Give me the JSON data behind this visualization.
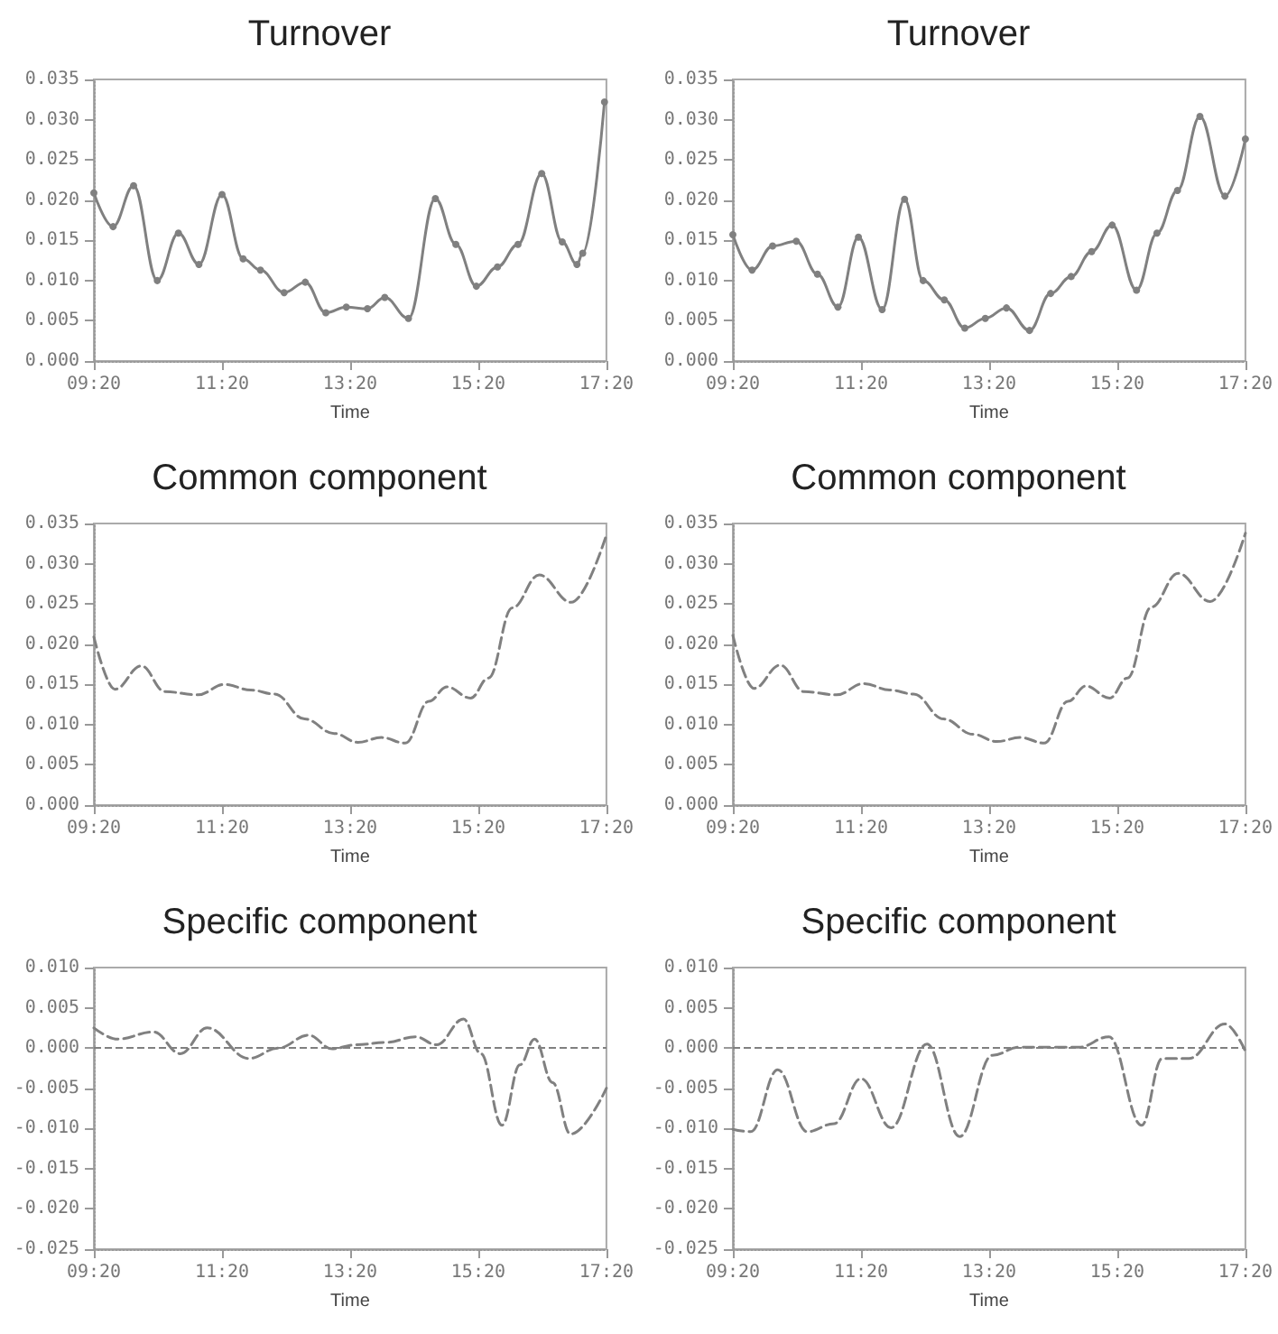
{
  "chart_data": [
    {
      "type": "line",
      "title": "Turnover",
      "xlabel": "Time",
      "marker": "circle",
      "line_style": "solid",
      "xlim": [
        9.33,
        17.33
      ],
      "xticks": [
        {
          "value": 9.33,
          "label": "09:20"
        },
        {
          "value": 11.33,
          "label": "11:20"
        },
        {
          "value": 13.33,
          "label": "13:20"
        },
        {
          "value": 15.33,
          "label": "15:20"
        },
        {
          "value": 17.33,
          "label": "17:20"
        }
      ],
      "ylim": [
        0,
        0.035
      ],
      "yticks": [
        {
          "value": 0,
          "label": "0.000"
        },
        {
          "value": 0.005,
          "label": "0.005"
        },
        {
          "value": 0.01,
          "label": "0.010"
        },
        {
          "value": 0.015,
          "label": "0.015"
        },
        {
          "value": 0.02,
          "label": "0.020"
        },
        {
          "value": 0.025,
          "label": "0.025"
        },
        {
          "value": 0.03,
          "label": "0.030"
        },
        {
          "value": 0.035,
          "label": "0.035"
        }
      ],
      "series": [
        {
          "color": "#808080",
          "x": [
            9.33,
            9.63,
            9.95,
            10.32,
            10.65,
            10.97,
            11.33,
            11.66,
            11.93,
            12.3,
            12.63,
            12.95,
            13.27,
            13.6,
            13.87,
            14.24,
            14.66,
            14.98,
            15.3,
            15.63,
            15.95,
            16.32,
            16.64,
            16.87,
            16.96,
            17.3
          ],
          "values": [
            0.0209,
            0.0167,
            0.0218,
            0.01,
            0.0159,
            0.012,
            0.0207,
            0.0127,
            0.0113,
            0.0085,
            0.0098,
            0.006,
            0.0067,
            0.0065,
            0.0079,
            0.0053,
            0.0202,
            0.0145,
            0.0093,
            0.0117,
            0.0145,
            0.0233,
            0.0148,
            0.012,
            0.0134,
            0.0322
          ]
        }
      ]
    },
    {
      "type": "line",
      "title": "Turnover",
      "xlabel": "Time",
      "marker": "circle",
      "line_style": "solid",
      "xlim": [
        9.33,
        17.33
      ],
      "xticks": [
        {
          "value": 9.33,
          "label": "09:20"
        },
        {
          "value": 11.33,
          "label": "11:20"
        },
        {
          "value": 13.33,
          "label": "13:20"
        },
        {
          "value": 15.33,
          "label": "15:20"
        },
        {
          "value": 17.33,
          "label": "17:20"
        }
      ],
      "ylim": [
        0,
        0.035
      ],
      "yticks": [
        {
          "value": 0,
          "label": "0.000"
        },
        {
          "value": 0.005,
          "label": "0.005"
        },
        {
          "value": 0.01,
          "label": "0.010"
        },
        {
          "value": 0.015,
          "label": "0.015"
        },
        {
          "value": 0.02,
          "label": "0.020"
        },
        {
          "value": 0.025,
          "label": "0.025"
        },
        {
          "value": 0.03,
          "label": "0.030"
        },
        {
          "value": 0.035,
          "label": "0.035"
        }
      ],
      "series": [
        {
          "color": "#808080",
          "x": [
            9.33,
            9.63,
            9.95,
            10.32,
            10.65,
            10.97,
            11.29,
            11.66,
            12.01,
            12.3,
            12.63,
            12.95,
            13.27,
            13.6,
            13.96,
            14.29,
            14.61,
            14.93,
            15.25,
            15.63,
            15.95,
            16.27,
            16.62,
            17.01,
            17.33
          ],
          "values": [
            0.0157,
            0.0113,
            0.0143,
            0.0149,
            0.0108,
            0.0067,
            0.0154,
            0.0064,
            0.0201,
            0.01,
            0.0076,
            0.0041,
            0.0053,
            0.0066,
            0.0038,
            0.0084,
            0.0105,
            0.0136,
            0.0169,
            0.0088,
            0.0159,
            0.0212,
            0.0304,
            0.0205,
            0.0276
          ]
        }
      ]
    },
    {
      "type": "line",
      "title": "Common component",
      "xlabel": "Time",
      "line_style": "dashed",
      "xlim": [
        9.33,
        17.33
      ],
      "xticks": [
        {
          "value": 9.33,
          "label": "09:20"
        },
        {
          "value": 11.33,
          "label": "11:20"
        },
        {
          "value": 13.33,
          "label": "13:20"
        },
        {
          "value": 15.33,
          "label": "15:20"
        },
        {
          "value": 17.33,
          "label": "17:20"
        }
      ],
      "ylim": [
        0,
        0.035
      ],
      "yticks": [
        {
          "value": 0,
          "label": "0.000"
        },
        {
          "value": 0.005,
          "label": "0.005"
        },
        {
          "value": 0.01,
          "label": "0.010"
        },
        {
          "value": 0.015,
          "label": "0.015"
        },
        {
          "value": 0.02,
          "label": "0.020"
        },
        {
          "value": 0.025,
          "label": "0.025"
        },
        {
          "value": 0.03,
          "label": "0.030"
        },
        {
          "value": 0.035,
          "label": "0.035"
        }
      ],
      "series": [
        {
          "color": "#808080",
          "x": [
            9.33,
            9.66,
            10.07,
            10.44,
            10.95,
            11.37,
            11.78,
            12.15,
            12.62,
            13.08,
            13.45,
            13.82,
            14.19,
            14.56,
            14.84,
            15.21,
            15.49,
            15.86,
            16.28,
            16.78,
            17.33
          ],
          "values": [
            0.0209,
            0.0144,
            0.0173,
            0.0141,
            0.0137,
            0.015,
            0.0143,
            0.0138,
            0.0107,
            0.0089,
            0.0078,
            0.0084,
            0.0077,
            0.0129,
            0.0147,
            0.0133,
            0.0158,
            0.0245,
            0.0286,
            0.0252,
            0.0336
          ]
        }
      ]
    },
    {
      "type": "line",
      "title": "Common component",
      "xlabel": "Time",
      "line_style": "dashed",
      "xlim": [
        9.33,
        17.33
      ],
      "xticks": [
        {
          "value": 9.33,
          "label": "09:20"
        },
        {
          "value": 11.33,
          "label": "11:20"
        },
        {
          "value": 13.33,
          "label": "13:20"
        },
        {
          "value": 15.33,
          "label": "15:20"
        },
        {
          "value": 17.33,
          "label": "17:20"
        }
      ],
      "ylim": [
        0,
        0.035
      ],
      "yticks": [
        {
          "value": 0,
          "label": "0.000"
        },
        {
          "value": 0.005,
          "label": "0.005"
        },
        {
          "value": 0.01,
          "label": "0.010"
        },
        {
          "value": 0.015,
          "label": "0.015"
        },
        {
          "value": 0.02,
          "label": "0.020"
        },
        {
          "value": 0.025,
          "label": "0.025"
        },
        {
          "value": 0.03,
          "label": "0.030"
        },
        {
          "value": 0.035,
          "label": "0.035"
        }
      ],
      "series": [
        {
          "color": "#808080",
          "x": [
            9.33,
            9.66,
            10.07,
            10.44,
            10.95,
            11.37,
            11.78,
            12.15,
            12.62,
            13.08,
            13.45,
            13.82,
            14.19,
            14.56,
            14.84,
            15.21,
            15.49,
            15.86,
            16.28,
            16.78,
            17.33
          ],
          "values": [
            0.0211,
            0.0145,
            0.0174,
            0.0141,
            0.0137,
            0.0151,
            0.0143,
            0.0138,
            0.0107,
            0.0088,
            0.0079,
            0.0084,
            0.0077,
            0.0129,
            0.0148,
            0.0133,
            0.0158,
            0.0246,
            0.0288,
            0.0253,
            0.0338
          ]
        }
      ]
    },
    {
      "type": "line",
      "title": "Specific component",
      "xlabel": "Time",
      "line_style": "dashed",
      "xlim": [
        9.33,
        17.33
      ],
      "xticks": [
        {
          "value": 9.33,
          "label": "09:20"
        },
        {
          "value": 11.33,
          "label": "11:20"
        },
        {
          "value": 13.33,
          "label": "13:20"
        },
        {
          "value": 15.33,
          "label": "15:20"
        },
        {
          "value": 17.33,
          "label": "17:20"
        }
      ],
      "ylim": [
        -0.025,
        0.01
      ],
      "yticks": [
        {
          "value": -0.025,
          "label": "-0.025"
        },
        {
          "value": -0.02,
          "label": "-0.020"
        },
        {
          "value": -0.015,
          "label": "-0.015"
        },
        {
          "value": -0.01,
          "label": "-0.010"
        },
        {
          "value": -0.005,
          "label": "-0.005"
        },
        {
          "value": 0,
          "label": "0.000"
        },
        {
          "value": 0.005,
          "label": "0.005"
        },
        {
          "value": 0.01,
          "label": "0.010"
        }
      ],
      "ref_lines": [
        {
          "axis": "y",
          "value": 0,
          "line_style": "dashed",
          "color": "#808080"
        }
      ],
      "series": [
        {
          "color": "#808080",
          "x": [
            9.33,
            9.7,
            10.26,
            10.68,
            11.1,
            11.75,
            12.21,
            12.68,
            13.05,
            13.42,
            13.89,
            14.35,
            14.68,
            15.1,
            15.37,
            15.7,
            15.98,
            16.21,
            16.49,
            16.77,
            17.33
          ],
          "values": [
            0.0025,
            0.0011,
            0.002,
            -0.0007,
            0.0025,
            -0.0013,
            0.0,
            0.0016,
            -0.0001,
            0.0004,
            0.0007,
            0.0014,
            0.0004,
            0.0036,
            -0.0007,
            -0.0096,
            -0.0021,
            0.0011,
            -0.0043,
            -0.0107,
            -0.005
          ]
        }
      ]
    },
    {
      "type": "line",
      "title": "Specific component",
      "xlabel": "Time",
      "line_style": "dashed",
      "xlim": [
        9.33,
        17.33
      ],
      "xticks": [
        {
          "value": 9.33,
          "label": "09:20"
        },
        {
          "value": 11.33,
          "label": "11:20"
        },
        {
          "value": 13.33,
          "label": "13:20"
        },
        {
          "value": 15.33,
          "label": "15:20"
        },
        {
          "value": 17.33,
          "label": "17:20"
        }
      ],
      "ylim": [
        -0.025,
        0.01
      ],
      "yticks": [
        {
          "value": -0.025,
          "label": "-0.025"
        },
        {
          "value": -0.02,
          "label": "-0.020"
        },
        {
          "value": -0.015,
          "label": "-0.015"
        },
        {
          "value": -0.01,
          "label": "-0.010"
        },
        {
          "value": -0.005,
          "label": "-0.005"
        },
        {
          "value": 0,
          "label": "0.000"
        },
        {
          "value": 0.005,
          "label": "0.005"
        },
        {
          "value": 0.01,
          "label": "0.010"
        }
      ],
      "ref_lines": [
        {
          "axis": "y",
          "value": 0,
          "line_style": "dashed",
          "color": "#808080"
        }
      ],
      "series": [
        {
          "color": "#808080",
          "x": [
            9.33,
            9.61,
            10.03,
            10.49,
            10.91,
            11.33,
            11.8,
            12.36,
            12.87,
            13.38,
            13.8,
            14.36,
            14.73,
            15.2,
            15.71,
            16.03,
            16.45,
            17.01,
            17.33
          ],
          "values": [
            -0.0101,
            -0.0104,
            -0.0027,
            -0.0104,
            -0.0094,
            -0.0038,
            -0.0099,
            0.0005,
            -0.011,
            -0.0009,
            0.0001,
            0.0001,
            0.0001,
            0.0014,
            -0.0096,
            -0.0013,
            -0.0013,
            0.003,
            -0.0004
          ]
        }
      ]
    }
  ]
}
